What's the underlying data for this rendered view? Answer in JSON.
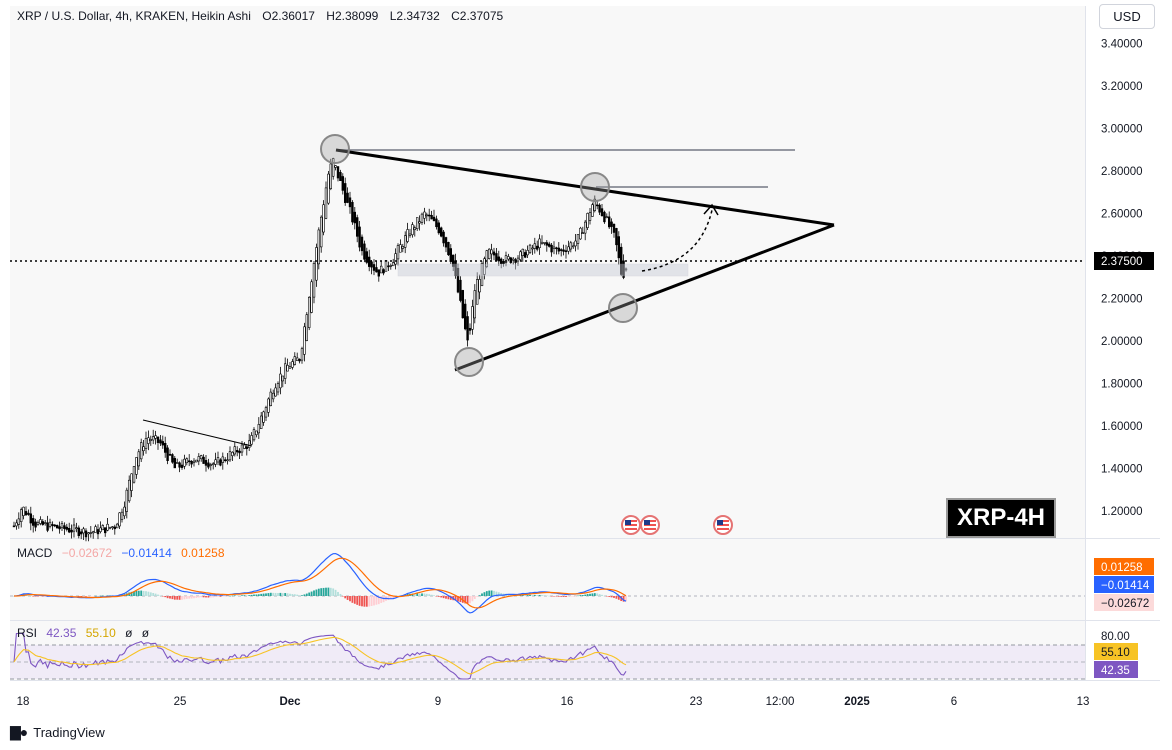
{
  "header": {
    "symbol": "XRP / U.S. Dollar, 4h, KRAKEN, Heikin Ashi",
    "open_label": "O",
    "open": "2.36017",
    "high_label": "H",
    "high": "2.38099",
    "low_label": "L",
    "low": "2.34732",
    "close_label": "C",
    "close": "2.37075"
  },
  "currency_button": "USD",
  "watermark": "XRP-4H",
  "brand": "TradingView",
  "colors": {
    "up": "#26a69a",
    "down": "#ef5350",
    "macd_line": "#2962ff",
    "signal_line": "#ff6d00",
    "rsi_line": "#7e57c2",
    "rsi_ma": "#f7c325",
    "trend_line": "#000000",
    "resistance": "#9598a1"
  },
  "macd": {
    "name": "MACD",
    "values": [
      "−0.02672",
      "−0.01414",
      "0.01258"
    ],
    "tags": [
      "0.01258",
      "−0.01414",
      "−0.02672"
    ]
  },
  "rsi": {
    "name": "RSI",
    "values": [
      "42.35",
      "55.10",
      "ø",
      "ø"
    ],
    "upper": "80.00",
    "tags": [
      "55.10",
      "42.35"
    ]
  },
  "chart_data": {
    "type": "candlestick",
    "style": "Heikin Ashi",
    "timeframe": "4h",
    "y_ticks": [
      "3.40000",
      "3.20000",
      "3.00000",
      "2.80000",
      "2.60000",
      "2.40000",
      "2.20000",
      "2.00000",
      "1.80000",
      "1.60000",
      "1.40000",
      "1.20000"
    ],
    "ylim": [
      1.1,
      3.5
    ],
    "x_ticks": [
      "18",
      "25",
      "Dec",
      "9",
      "16",
      "23",
      "12:00",
      "2025",
      "6",
      "13"
    ],
    "current_price": "2.37500",
    "current_price_value": 2.375,
    "key_prices": {
      "high": 2.9,
      "lower_high": 2.72,
      "low": 1.88,
      "recent_low": 2.16,
      "apex": 2.55
    },
    "annotations": [
      "symmetrical triangle",
      "support zone",
      "projected move up"
    ]
  }
}
